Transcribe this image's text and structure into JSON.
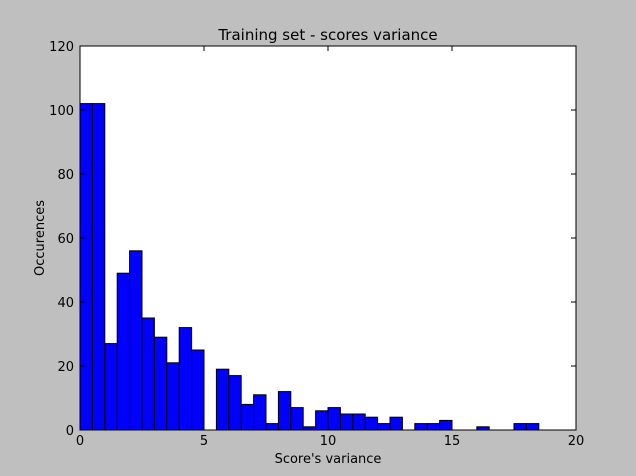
{
  "chart_data": {
    "type": "bar",
    "title": "Training set - scores variance",
    "xlabel": "Score's variance",
    "ylabel": "Occurences",
    "xlim": [
      0,
      20
    ],
    "ylim": [
      0,
      120
    ],
    "xticks": [
      0,
      5,
      10,
      15,
      20
    ],
    "yticks": [
      0,
      20,
      40,
      60,
      80,
      100,
      120
    ],
    "bin_width": 0.5,
    "bin_starts": [
      0,
      0.5,
      1,
      1.5,
      2,
      2.5,
      3,
      3.5,
      4,
      4.5,
      5,
      5.5,
      6,
      6.5,
      7,
      7.5,
      8,
      8.5,
      9,
      9.5,
      10,
      10.5,
      11,
      11.5,
      12,
      12.5,
      13,
      13.5,
      14,
      14.5,
      15,
      15.5,
      16,
      16.5,
      17,
      17.5,
      18
    ],
    "values": [
      102,
      102,
      27,
      49,
      56,
      35,
      29,
      21,
      32,
      25,
      0,
      19,
      17,
      8,
      11,
      2,
      12,
      7,
      1,
      6,
      7,
      5,
      5,
      4,
      2,
      4,
      0,
      2,
      2,
      3,
      0,
      0,
      1,
      0,
      0,
      2,
      2
    ],
    "grid": false,
    "colors": {
      "bar": "#0000ff",
      "edge": "#000000",
      "axes_bg": "#ffffff",
      "figure_bg": "#bfbfbf"
    }
  }
}
